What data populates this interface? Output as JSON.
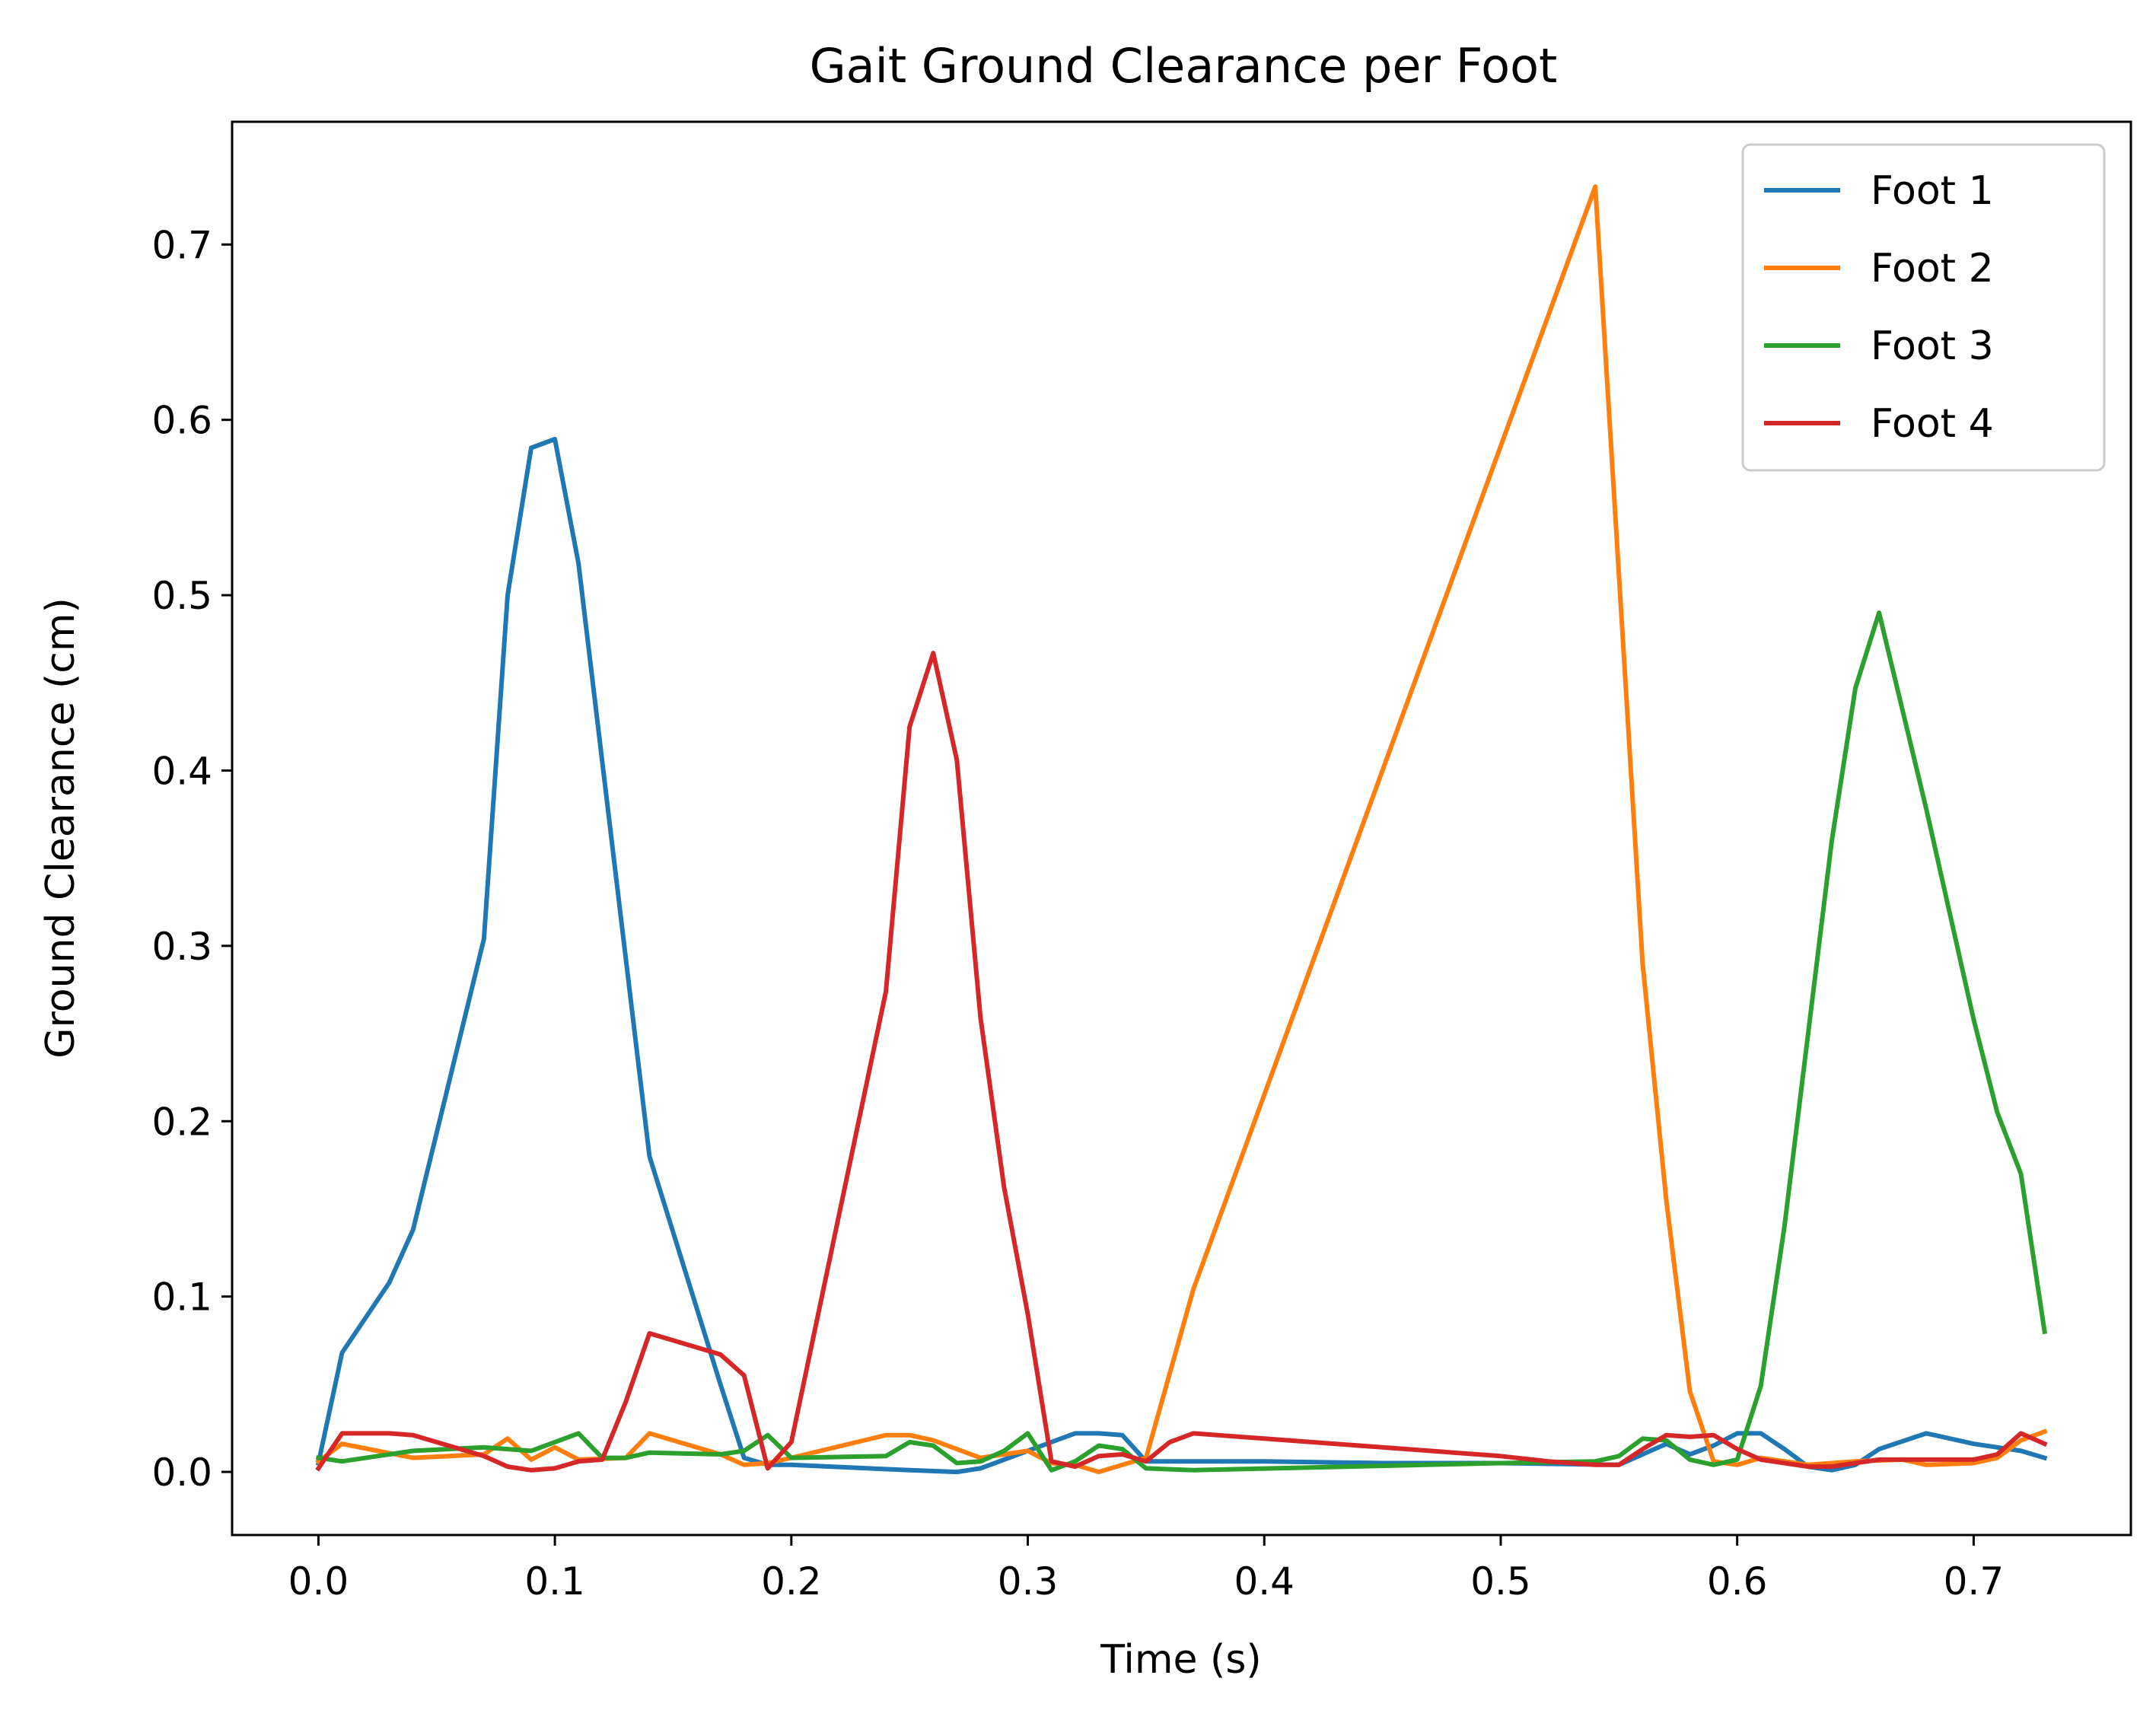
{
  "chart_data": {
    "type": "line",
    "title": "Gait Ground Clearance per Foot",
    "xlabel": "Time (s)",
    "ylabel": "Ground Clearance (cm)",
    "xlim": [
      -0.0365,
      0.7665
    ],
    "ylim": [
      -0.036,
      0.77
    ],
    "xticks": [
      0.0,
      0.1,
      0.2,
      0.3,
      0.4,
      0.5,
      0.6,
      0.7
    ],
    "xtick_labels": [
      "0.0",
      "0.1",
      "0.2",
      "0.3",
      "0.4",
      "0.5",
      "0.6",
      "0.7"
    ],
    "yticks": [
      0.0,
      0.1,
      0.2,
      0.3,
      0.4,
      0.5,
      0.6,
      0.7
    ],
    "ytick_labels": [
      "0.0",
      "0.1",
      "0.2",
      "0.3",
      "0.4",
      "0.5",
      "0.6",
      "0.7"
    ],
    "grid": false,
    "legend_position": "top-right",
    "series": [
      {
        "name": "Foot 1",
        "color": "#1f77b4",
        "points": [
          [
            0.0,
            0.005
          ],
          [
            0.01,
            0.068
          ],
          [
            0.03,
            0.108
          ],
          [
            0.04,
            0.138
          ],
          [
            0.07,
            0.304
          ],
          [
            0.08,
            0.5
          ],
          [
            0.09,
            0.584
          ],
          [
            0.1,
            0.589
          ],
          [
            0.11,
            0.518
          ],
          [
            0.14,
            0.18
          ],
          [
            0.17,
            0.05
          ],
          [
            0.18,
            0.008
          ],
          [
            0.19,
            0.004
          ],
          [
            0.2,
            0.004
          ],
          [
            0.25,
            0.001
          ],
          [
            0.27,
            0.0
          ],
          [
            0.28,
            0.002
          ],
          [
            0.3,
            0.012
          ],
          [
            0.32,
            0.022
          ],
          [
            0.33,
            0.022
          ],
          [
            0.34,
            0.021
          ],
          [
            0.35,
            0.006
          ],
          [
            0.4,
            0.006
          ],
          [
            0.45,
            0.005
          ],
          [
            0.5,
            0.005
          ],
          [
            0.55,
            0.004
          ],
          [
            0.57,
            0.016
          ],
          [
            0.58,
            0.01
          ],
          [
            0.59,
            0.015
          ],
          [
            0.6,
            0.022
          ],
          [
            0.61,
            0.022
          ],
          [
            0.62,
            0.013
          ],
          [
            0.63,
            0.003
          ],
          [
            0.64,
            0.001
          ],
          [
            0.65,
            0.004
          ],
          [
            0.66,
            0.013
          ],
          [
            0.68,
            0.022
          ],
          [
            0.7,
            0.016
          ],
          [
            0.72,
            0.012
          ],
          [
            0.73,
            0.008
          ]
        ]
      },
      {
        "name": "Foot 2",
        "color": "#ff7f0e",
        "points": [
          [
            0.0,
            0.006
          ],
          [
            0.01,
            0.016
          ],
          [
            0.04,
            0.008
          ],
          [
            0.07,
            0.01
          ],
          [
            0.08,
            0.019
          ],
          [
            0.09,
            0.007
          ],
          [
            0.1,
            0.014
          ],
          [
            0.11,
            0.007
          ],
          [
            0.13,
            0.008
          ],
          [
            0.14,
            0.022
          ],
          [
            0.17,
            0.01
          ],
          [
            0.18,
            0.004
          ],
          [
            0.19,
            0.005
          ],
          [
            0.2,
            0.008
          ],
          [
            0.24,
            0.021
          ],
          [
            0.25,
            0.021
          ],
          [
            0.26,
            0.018
          ],
          [
            0.28,
            0.008
          ],
          [
            0.3,
            0.012
          ],
          [
            0.31,
            0.005
          ],
          [
            0.32,
            0.004
          ],
          [
            0.33,
            0.0
          ],
          [
            0.34,
            0.004
          ],
          [
            0.35,
            0.008
          ],
          [
            0.37,
            0.104
          ],
          [
            0.54,
            0.733
          ],
          [
            0.56,
            0.29
          ],
          [
            0.57,
            0.155
          ],
          [
            0.58,
            0.046
          ],
          [
            0.59,
            0.006
          ],
          [
            0.6,
            0.004
          ],
          [
            0.61,
            0.008
          ],
          [
            0.63,
            0.004
          ],
          [
            0.65,
            0.006
          ],
          [
            0.67,
            0.007
          ],
          [
            0.68,
            0.004
          ],
          [
            0.7,
            0.005
          ],
          [
            0.71,
            0.008
          ],
          [
            0.72,
            0.018
          ],
          [
            0.73,
            0.023
          ]
        ]
      },
      {
        "name": "Foot 3",
        "color": "#2ca02c",
        "points": [
          [
            0.0,
            0.008
          ],
          [
            0.01,
            0.006
          ],
          [
            0.04,
            0.012
          ],
          [
            0.07,
            0.014
          ],
          [
            0.08,
            0.013
          ],
          [
            0.09,
            0.012
          ],
          [
            0.1,
            0.017
          ],
          [
            0.11,
            0.022
          ],
          [
            0.12,
            0.008
          ],
          [
            0.13,
            0.008
          ],
          [
            0.14,
            0.011
          ],
          [
            0.17,
            0.01
          ],
          [
            0.18,
            0.012
          ],
          [
            0.19,
            0.021
          ],
          [
            0.2,
            0.008
          ],
          [
            0.24,
            0.009
          ],
          [
            0.25,
            0.017
          ],
          [
            0.26,
            0.015
          ],
          [
            0.27,
            0.005
          ],
          [
            0.28,
            0.006
          ],
          [
            0.29,
            0.012
          ],
          [
            0.3,
            0.022
          ],
          [
            0.31,
            0.001
          ],
          [
            0.32,
            0.006
          ],
          [
            0.33,
            0.015
          ],
          [
            0.34,
            0.013
          ],
          [
            0.35,
            0.002
          ],
          [
            0.37,
            0.001
          ],
          [
            0.5,
            0.005
          ],
          [
            0.54,
            0.006
          ],
          [
            0.55,
            0.009
          ],
          [
            0.56,
            0.019
          ],
          [
            0.57,
            0.018
          ],
          [
            0.58,
            0.007
          ],
          [
            0.59,
            0.004
          ],
          [
            0.6,
            0.007
          ],
          [
            0.61,
            0.049
          ],
          [
            0.62,
            0.14
          ],
          [
            0.64,
            0.36
          ],
          [
            0.65,
            0.447
          ],
          [
            0.66,
            0.49
          ],
          [
            0.68,
            0.378
          ],
          [
            0.7,
            0.258
          ],
          [
            0.71,
            0.205
          ],
          [
            0.72,
            0.17
          ],
          [
            0.73,
            0.08
          ]
        ]
      },
      {
        "name": "Foot 4",
        "color": "#d62728",
        "points": [
          [
            0.0,
            0.002
          ],
          [
            0.01,
            0.022
          ],
          [
            0.03,
            0.022
          ],
          [
            0.04,
            0.021
          ],
          [
            0.07,
            0.009
          ],
          [
            0.08,
            0.003
          ],
          [
            0.09,
            0.001
          ],
          [
            0.1,
            0.002
          ],
          [
            0.11,
            0.006
          ],
          [
            0.12,
            0.007
          ],
          [
            0.13,
            0.04
          ],
          [
            0.14,
            0.079
          ],
          [
            0.17,
            0.067
          ],
          [
            0.18,
            0.055
          ],
          [
            0.19,
            0.002
          ],
          [
            0.2,
            0.017
          ],
          [
            0.24,
            0.274
          ],
          [
            0.25,
            0.425
          ],
          [
            0.26,
            0.467
          ],
          [
            0.27,
            0.406
          ],
          [
            0.28,
            0.259
          ],
          [
            0.29,
            0.162
          ],
          [
            0.3,
            0.09
          ],
          [
            0.31,
            0.006
          ],
          [
            0.32,
            0.003
          ],
          [
            0.33,
            0.009
          ],
          [
            0.34,
            0.01
          ],
          [
            0.35,
            0.006
          ],
          [
            0.36,
            0.017
          ],
          [
            0.37,
            0.022
          ],
          [
            0.4,
            0.019
          ],
          [
            0.45,
            0.014
          ],
          [
            0.5,
            0.009
          ],
          [
            0.52,
            0.006
          ],
          [
            0.54,
            0.004
          ],
          [
            0.55,
            0.004
          ],
          [
            0.56,
            0.013
          ],
          [
            0.57,
            0.021
          ],
          [
            0.58,
            0.02
          ],
          [
            0.59,
            0.021
          ],
          [
            0.6,
            0.013
          ],
          [
            0.61,
            0.007
          ],
          [
            0.63,
            0.003
          ],
          [
            0.64,
            0.003
          ],
          [
            0.65,
            0.005
          ],
          [
            0.66,
            0.007
          ],
          [
            0.68,
            0.007
          ],
          [
            0.7,
            0.007
          ],
          [
            0.71,
            0.01
          ],
          [
            0.72,
            0.022
          ],
          [
            0.73,
            0.016
          ]
        ]
      }
    ]
  }
}
